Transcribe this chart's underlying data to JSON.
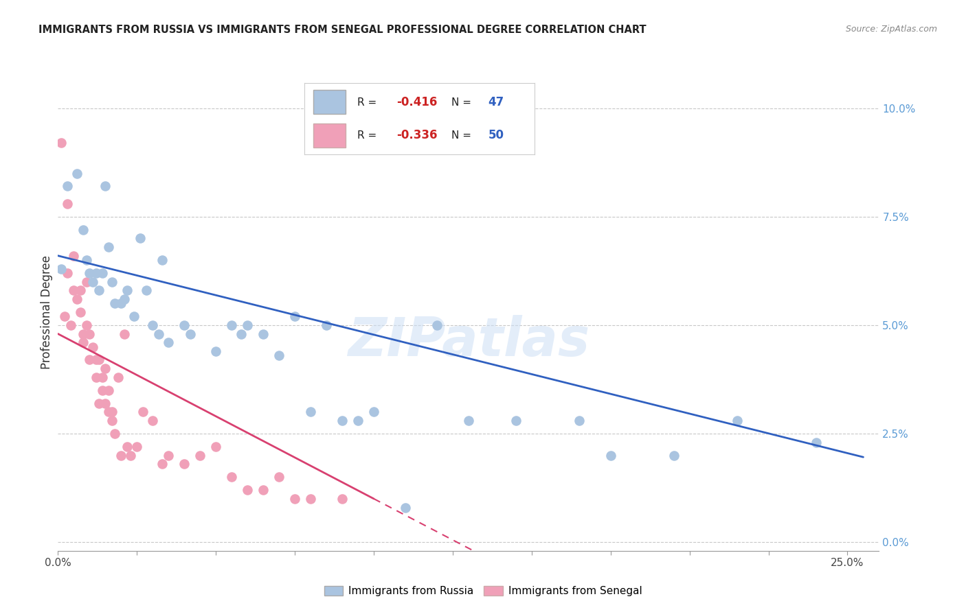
{
  "title": "IMMIGRANTS FROM RUSSIA VS IMMIGRANTS FROM SENEGAL PROFESSIONAL DEGREE CORRELATION CHART",
  "source": "Source: ZipAtlas.com",
  "ylabel": "Professional Degree",
  "xlim": [
    0.0,
    0.26
  ],
  "ylim": [
    -0.002,
    0.108
  ],
  "russia_color": "#aac4e0",
  "senegal_color": "#f0a0b8",
  "russia_line_color": "#3060c0",
  "senegal_line_color": "#d84070",
  "russia_line_intercept": 0.066,
  "russia_line_slope": -0.182,
  "senegal_line_intercept": 0.048,
  "senegal_line_slope": -0.38,
  "russia_R": -0.416,
  "russia_N": 47,
  "senegal_R": -0.336,
  "senegal_N": 50,
  "russia_x": [
    0.001,
    0.003,
    0.006,
    0.008,
    0.009,
    0.01,
    0.011,
    0.012,
    0.013,
    0.014,
    0.015,
    0.016,
    0.017,
    0.018,
    0.02,
    0.021,
    0.022,
    0.024,
    0.026,
    0.028,
    0.03,
    0.032,
    0.033,
    0.035,
    0.04,
    0.042,
    0.05,
    0.055,
    0.058,
    0.06,
    0.065,
    0.07,
    0.075,
    0.08,
    0.085,
    0.09,
    0.095,
    0.1,
    0.11,
    0.12,
    0.13,
    0.145,
    0.165,
    0.175,
    0.195,
    0.215,
    0.24
  ],
  "russia_y": [
    0.063,
    0.082,
    0.085,
    0.072,
    0.065,
    0.062,
    0.06,
    0.062,
    0.058,
    0.062,
    0.082,
    0.068,
    0.06,
    0.055,
    0.055,
    0.056,
    0.058,
    0.052,
    0.07,
    0.058,
    0.05,
    0.048,
    0.065,
    0.046,
    0.05,
    0.048,
    0.044,
    0.05,
    0.048,
    0.05,
    0.048,
    0.043,
    0.052,
    0.03,
    0.05,
    0.028,
    0.028,
    0.03,
    0.008,
    0.05,
    0.028,
    0.028,
    0.028,
    0.02,
    0.02,
    0.028,
    0.023
  ],
  "senegal_x": [
    0.001,
    0.002,
    0.003,
    0.003,
    0.004,
    0.005,
    0.005,
    0.006,
    0.007,
    0.007,
    0.008,
    0.008,
    0.009,
    0.009,
    0.01,
    0.01,
    0.011,
    0.012,
    0.012,
    0.013,
    0.013,
    0.014,
    0.014,
    0.015,
    0.015,
    0.016,
    0.016,
    0.017,
    0.017,
    0.018,
    0.019,
    0.02,
    0.021,
    0.022,
    0.023,
    0.025,
    0.027,
    0.03,
    0.033,
    0.035,
    0.04,
    0.045,
    0.05,
    0.055,
    0.06,
    0.065,
    0.07,
    0.075,
    0.08,
    0.09
  ],
  "senegal_y": [
    0.092,
    0.052,
    0.062,
    0.078,
    0.05,
    0.066,
    0.058,
    0.056,
    0.053,
    0.058,
    0.048,
    0.046,
    0.06,
    0.05,
    0.048,
    0.042,
    0.045,
    0.042,
    0.038,
    0.042,
    0.032,
    0.038,
    0.035,
    0.04,
    0.032,
    0.035,
    0.03,
    0.03,
    0.028,
    0.025,
    0.038,
    0.02,
    0.048,
    0.022,
    0.02,
    0.022,
    0.03,
    0.028,
    0.018,
    0.02,
    0.018,
    0.02,
    0.022,
    0.015,
    0.012,
    0.012,
    0.015,
    0.01,
    0.01,
    0.01
  ],
  "watermark": "ZIPatlas",
  "background_color": "#ffffff",
  "grid_color": "#c8c8c8",
  "ylabel_ticks": [
    0.0,
    0.025,
    0.05,
    0.075,
    0.1
  ],
  "ylabel_labels": [
    "0.0%",
    "2.5%",
    "5.0%",
    "7.5%",
    "10.0%"
  ]
}
